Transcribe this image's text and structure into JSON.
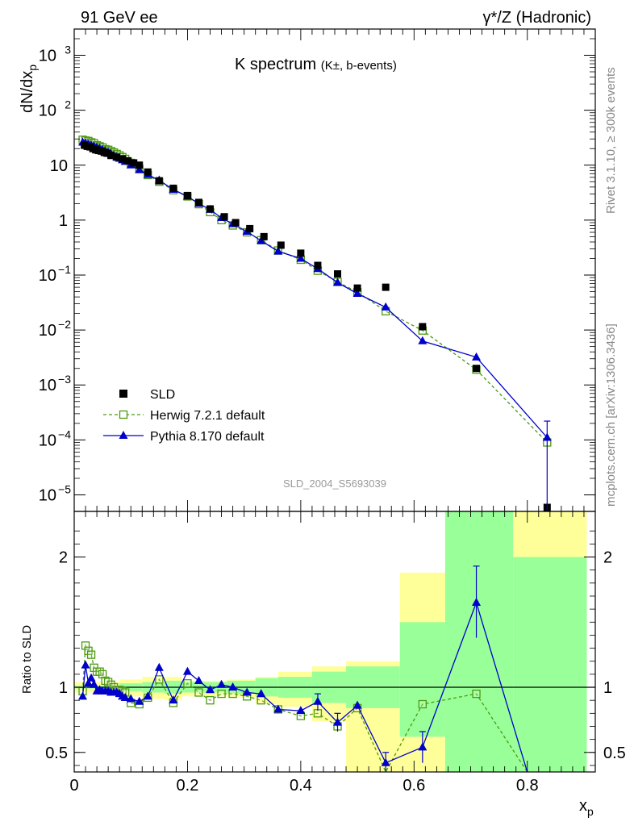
{
  "header": {
    "left": "91 GeV ee",
    "right": "γ*/Z (Hadronic)"
  },
  "side": {
    "rivet": "Rivet 3.1.10, ≥ 300k events",
    "mcplots": "mcplots.cern.ch [arXiv:1306.3436]"
  },
  "chart_data": [
    {
      "type": "line",
      "title_main": "K spectrum",
      "title_sub": "(K±, b-events)",
      "ylabel": "dN/dx",
      "ylabel_sub": "p",
      "xlabel": "x",
      "xlabel_sub": "p",
      "watermark": "SLD_2004_S5693039",
      "yscale": "log",
      "xlim": [
        0,
        0.92
      ],
      "ylim": [
        5e-06,
        3000
      ],
      "y_ticks": [
        {
          "v": 1e-05,
          "b": "10",
          "e": "−5"
        },
        {
          "v": 0.0001,
          "b": "10",
          "e": "−4"
        },
        {
          "v": 0.001,
          "b": "10",
          "e": "−3"
        },
        {
          "v": 0.01,
          "b": "10",
          "e": "−2"
        },
        {
          "v": 0.1,
          "b": "10",
          "e": "−1"
        },
        {
          "v": 1,
          "b": "1",
          "e": ""
        },
        {
          "v": 10,
          "b": "10",
          "e": ""
        },
        {
          "v": 100,
          "b": "10",
          "e": "2"
        },
        {
          "v": 1000,
          "b": "10",
          "e": "3"
        }
      ],
      "legend": [
        {
          "key": "sld",
          "label": "SLD"
        },
        {
          "key": "herwig",
          "label": "Herwig 7.2.1 default"
        },
        {
          "key": "pythia",
          "label": "Pythia 8.170 default"
        }
      ],
      "series": {
        "sld": {
          "x": [
            0.018,
            0.023,
            0.028,
            0.033,
            0.038,
            0.043,
            0.048,
            0.053,
            0.058,
            0.065,
            0.075,
            0.085,
            0.095,
            0.105,
            0.115,
            0.13,
            0.15,
            0.175,
            0.2,
            0.22,
            0.24,
            0.265,
            0.285,
            0.31,
            0.335,
            0.365,
            0.4,
            0.43,
            0.465,
            0.5,
            0.55,
            0.615,
            0.71,
            0.835
          ],
          "y": [
            23,
            22,
            21.5,
            20,
            19,
            18.5,
            18,
            17,
            16.5,
            15,
            14,
            13,
            12,
            11,
            10,
            7.5,
            5.2,
            3.8,
            2.8,
            2.1,
            1.6,
            1.15,
            0.9,
            0.7,
            0.5,
            0.35,
            0.25,
            0.15,
            0.105,
            0.058,
            0.06,
            0.0115,
            0.002,
            5e-06
          ]
        },
        "herwig": {
          "x": [
            0.015,
            0.02,
            0.025,
            0.03,
            0.035,
            0.04,
            0.045,
            0.05,
            0.055,
            0.06,
            0.065,
            0.07,
            0.075,
            0.08,
            0.085,
            0.09,
            0.1,
            0.115,
            0.13,
            0.15,
            0.175,
            0.2,
            0.22,
            0.24,
            0.26,
            0.28,
            0.305,
            0.33,
            0.36,
            0.4,
            0.43,
            0.465,
            0.5,
            0.55,
            0.615,
            0.71,
            0.835
          ],
          "y": [
            29,
            28,
            27.5,
            26,
            25,
            23,
            22,
            21,
            19.5,
            19,
            18,
            17,
            16,
            15,
            14,
            13,
            11,
            8.5,
            6.6,
            5.0,
            3.5,
            2.7,
            1.95,
            1.4,
            1.0,
            0.8,
            0.6,
            0.43,
            0.28,
            0.19,
            0.12,
            0.075,
            0.049,
            0.022,
            0.0098,
            0.0019,
            9e-05
          ]
        },
        "pythia": {
          "x": [
            0.015,
            0.02,
            0.025,
            0.03,
            0.035,
            0.04,
            0.045,
            0.05,
            0.055,
            0.06,
            0.065,
            0.07,
            0.075,
            0.08,
            0.085,
            0.09,
            0.1,
            0.115,
            0.13,
            0.15,
            0.175,
            0.2,
            0.22,
            0.24,
            0.26,
            0.28,
            0.305,
            0.33,
            0.36,
            0.4,
            0.43,
            0.465,
            0.5,
            0.55,
            0.615,
            0.71,
            0.835
          ],
          "y": [
            26,
            25,
            24,
            23,
            22,
            21,
            20,
            19,
            18,
            17,
            16,
            15,
            14,
            13.2,
            12.4,
            11.6,
            10,
            8.2,
            6.7,
            5.3,
            3.6,
            2.7,
            2.0,
            1.55,
            1.1,
            0.85,
            0.62,
            0.42,
            0.27,
            0.2,
            0.13,
            0.073,
            0.046,
            0.026,
            0.0063,
            0.0032,
            0.00011
          ]
        }
      }
    },
    {
      "type": "line",
      "ylabel": "Ratio to SLD",
      "ylim": [
        0.35,
        2.35
      ],
      "y_ticks": [
        0.5,
        1,
        2
      ],
      "x_ticks": [
        0,
        0.2,
        0.4,
        0.6,
        0.8
      ],
      "reference_line": 1,
      "uncertainty_bands": [
        {
          "x0": 0.0,
          "x1": 0.08,
          "stat_lo": 0.99,
          "stat_hi": 1.01,
          "tot_lo": 0.96,
          "tot_hi": 1.04
        },
        {
          "x0": 0.08,
          "x1": 0.12,
          "stat_lo": 0.97,
          "stat_hi": 1.03,
          "tot_lo": 0.93,
          "tot_hi": 1.06
        },
        {
          "x0": 0.12,
          "x1": 0.16,
          "stat_lo": 0.96,
          "stat_hi": 1.04,
          "tot_lo": 0.91,
          "tot_hi": 1.08
        },
        {
          "x0": 0.16,
          "x1": 0.19,
          "stat_lo": 0.95,
          "stat_hi": 1.05,
          "tot_lo": 0.9,
          "tot_hi": 1.08
        },
        {
          "x0": 0.19,
          "x1": 0.27,
          "stat_lo": 0.96,
          "stat_hi": 1.04,
          "tot_lo": 0.93,
          "tot_hi": 1.05
        },
        {
          "x0": 0.27,
          "x1": 0.32,
          "stat_lo": 0.95,
          "stat_hi": 1.05,
          "tot_lo": 0.92,
          "tot_hi": 1.06
        },
        {
          "x0": 0.32,
          "x1": 0.36,
          "stat_lo": 0.93,
          "stat_hi": 1.07,
          "tot_lo": 0.87,
          "tot_hi": 1.08
        },
        {
          "x0": 0.36,
          "x1": 0.42,
          "stat_lo": 0.92,
          "stat_hi": 1.08,
          "tot_lo": 0.85,
          "tot_hi": 1.12
        },
        {
          "x0": 0.42,
          "x1": 0.48,
          "stat_lo": 0.88,
          "stat_hi": 1.12,
          "tot_lo": 0.74,
          "tot_hi": 1.16
        },
        {
          "x0": 0.48,
          "x1": 0.575,
          "stat_lo": 0.84,
          "stat_hi": 1.16,
          "tot_lo": 0.35,
          "tot_hi": 1.2
        },
        {
          "x0": 0.575,
          "x1": 0.655,
          "stat_lo": 0.62,
          "stat_hi": 1.5,
          "tot_lo": 0.35,
          "tot_hi": 1.88
        },
        {
          "x0": 0.655,
          "x1": 0.775,
          "stat_lo": 0.35,
          "stat_hi": 2.35,
          "tot_lo": 0.35,
          "tot_hi": 2.35
        },
        {
          "x0": 0.775,
          "x1": 0.905,
          "stat_lo": 0.35,
          "stat_hi": 2.0,
          "tot_lo": 0.35,
          "tot_hi": 2.35
        }
      ],
      "series": {
        "herwig": {
          "x": [
            0.015,
            0.02,
            0.025,
            0.03,
            0.035,
            0.04,
            0.045,
            0.05,
            0.055,
            0.06,
            0.065,
            0.07,
            0.075,
            0.08,
            0.085,
            0.09,
            0.1,
            0.115,
            0.13,
            0.15,
            0.175,
            0.2,
            0.22,
            0.24,
            0.26,
            0.28,
            0.305,
            0.33,
            0.36,
            0.4,
            0.43,
            0.465,
            0.5,
            0.55,
            0.615,
            0.71,
            0.8
          ],
          "y": [
            0.97,
            1.32,
            1.28,
            1.25,
            1.15,
            1.12,
            1.12,
            1.1,
            1.05,
            1.04,
            1.02,
            1.0,
            0.98,
            0.98,
            0.97,
            0.96,
            0.88,
            0.87,
            0.92,
            1.06,
            0.88,
            1.03,
            0.96,
            0.9,
            0.95,
            0.95,
            0.93,
            0.9,
            0.83,
            0.78,
            0.8,
            0.7,
            0.84,
            0.3,
            0.87,
            0.95,
            0.3
          ]
        },
        "pythia": {
          "x": [
            0.015,
            0.02,
            0.025,
            0.03,
            0.035,
            0.04,
            0.045,
            0.05,
            0.055,
            0.06,
            0.065,
            0.07,
            0.075,
            0.08,
            0.085,
            0.09,
            0.1,
            0.115,
            0.13,
            0.15,
            0.175,
            0.2,
            0.22,
            0.24,
            0.26,
            0.28,
            0.305,
            0.33,
            0.36,
            0.4,
            0.43,
            0.465,
            0.5,
            0.55,
            0.615,
            0.71,
            0.8
          ],
          "y": [
            0.93,
            1.17,
            1.03,
            1.07,
            1.02,
            0.97,
            0.98,
            0.97,
            0.97,
            0.97,
            0.96,
            0.96,
            0.96,
            0.95,
            0.93,
            0.92,
            0.91,
            0.89,
            0.93,
            1.15,
            0.9,
            1.12,
            1.05,
            0.98,
            1.02,
            1.0,
            0.96,
            0.95,
            0.83,
            0.82,
            0.89,
            0.73,
            0.86,
            0.42,
            0.54,
            1.65,
            0.3
          ]
        }
      }
    }
  ]
}
